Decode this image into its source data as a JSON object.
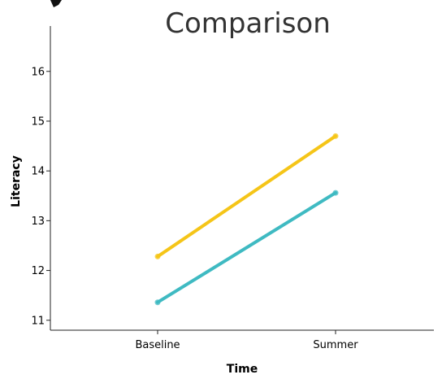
{
  "chart_data": {
    "type": "line",
    "title": "Comparison",
    "xlabel": "Time",
    "ylabel": "Literacy",
    "categories": [
      "Baseline",
      "Summer"
    ],
    "ylim": [
      10.8,
      16.8
    ],
    "yticks": [
      "11",
      "12",
      "13",
      "14",
      "15",
      "16"
    ],
    "grid": false,
    "series": [
      {
        "values": [
          12.28,
          14.7
        ],
        "color": "#f5c518"
      },
      {
        "values": [
          11.36,
          13.56
        ],
        "color": "#3fbac2"
      }
    ]
  }
}
